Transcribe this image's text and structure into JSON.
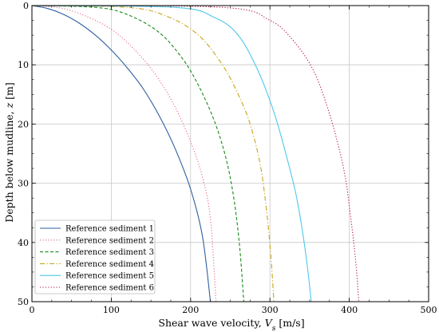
{
  "chart_data": {
    "type": "line",
    "title": "",
    "xlabel_prefix": "Shear wave velocity, ",
    "xlabel_var": "V",
    "xlabel_sub": "s",
    "xlabel_suffix": " [m/s]",
    "ylabel_prefix": "Depth below mudline, ",
    "ylabel_var": "z",
    "ylabel_suffix": " [m]",
    "xlim": [
      0,
      500
    ],
    "ylim": [
      50,
      0
    ],
    "x_ticks": [
      "0",
      "100",
      "200",
      "300",
      "400",
      "500"
    ],
    "y_ticks": [
      "0",
      "10",
      "20",
      "30",
      "40",
      "50"
    ],
    "grid": true,
    "legend_placement": "lower-left",
    "series": [
      {
        "name": "Reference sediment 1",
        "color": "#2e5f9e",
        "dash": "solid",
        "points": [
          [
            0,
            0
          ],
          [
            20,
            0.5
          ],
          [
            40,
            1.5
          ],
          [
            60,
            3
          ],
          [
            80,
            5
          ],
          [
            100,
            7.5
          ],
          [
            120,
            10.5
          ],
          [
            140,
            14
          ],
          [
            160,
            18.5
          ],
          [
            180,
            24
          ],
          [
            200,
            31
          ],
          [
            215,
            39
          ],
          [
            225,
            50
          ]
        ]
      },
      {
        "name": "Reference sediment 2",
        "color": "#e46a8c",
        "dash": "dot",
        "points": [
          [
            0,
            0
          ],
          [
            40,
            0.5
          ],
          [
            80,
            2.5
          ],
          [
            110,
            5
          ],
          [
            140,
            9
          ],
          [
            160,
            12.5
          ],
          [
            180,
            17
          ],
          [
            200,
            23
          ],
          [
            215,
            29
          ],
          [
            225,
            36
          ],
          [
            232,
            50
          ]
        ]
      },
      {
        "name": "Reference sediment 3",
        "color": "#1a8a1a",
        "dash": "dash",
        "points": [
          [
            0,
            0
          ],
          [
            80,
            0.3
          ],
          [
            120,
            1.5
          ],
          [
            160,
            4.5
          ],
          [
            190,
            9
          ],
          [
            210,
            13.5
          ],
          [
            230,
            19.5
          ],
          [
            245,
            26
          ],
          [
            255,
            33
          ],
          [
            262,
            41
          ],
          [
            267,
            50
          ]
        ]
      },
      {
        "name": "Reference sediment 4",
        "color": "#c9a41a",
        "dash": "dashdot",
        "points": [
          [
            0,
            0
          ],
          [
            120,
            0.3
          ],
          [
            170,
            1.8
          ],
          [
            210,
            5
          ],
          [
            240,
            10
          ],
          [
            260,
            15
          ],
          [
            275,
            20
          ],
          [
            288,
            27
          ],
          [
            296,
            35
          ],
          [
            301,
            42
          ],
          [
            305,
            50
          ]
        ]
      },
      {
        "name": "Reference sediment 5",
        "color": "#4ec8ea",
        "dash": "solid",
        "points": [
          [
            0,
            0
          ],
          [
            180,
            0.3
          ],
          [
            230,
            2
          ],
          [
            260,
            5
          ],
          [
            285,
            11
          ],
          [
            305,
            18
          ],
          [
            320,
            25
          ],
          [
            333,
            32
          ],
          [
            342,
            39
          ],
          [
            348,
            45
          ],
          [
            352,
            50
          ]
        ]
      },
      {
        "name": "Reference sediment 6",
        "color": "#b0153f",
        "dash": "dot",
        "points": [
          [
            0,
            0
          ],
          [
            240,
            0.3
          ],
          [
            300,
            2.5
          ],
          [
            330,
            6
          ],
          [
            355,
            11
          ],
          [
            372,
            17
          ],
          [
            385,
            23
          ],
          [
            395,
            29
          ],
          [
            402,
            36
          ],
          [
            408,
            43
          ],
          [
            412,
            50
          ]
        ]
      }
    ]
  }
}
